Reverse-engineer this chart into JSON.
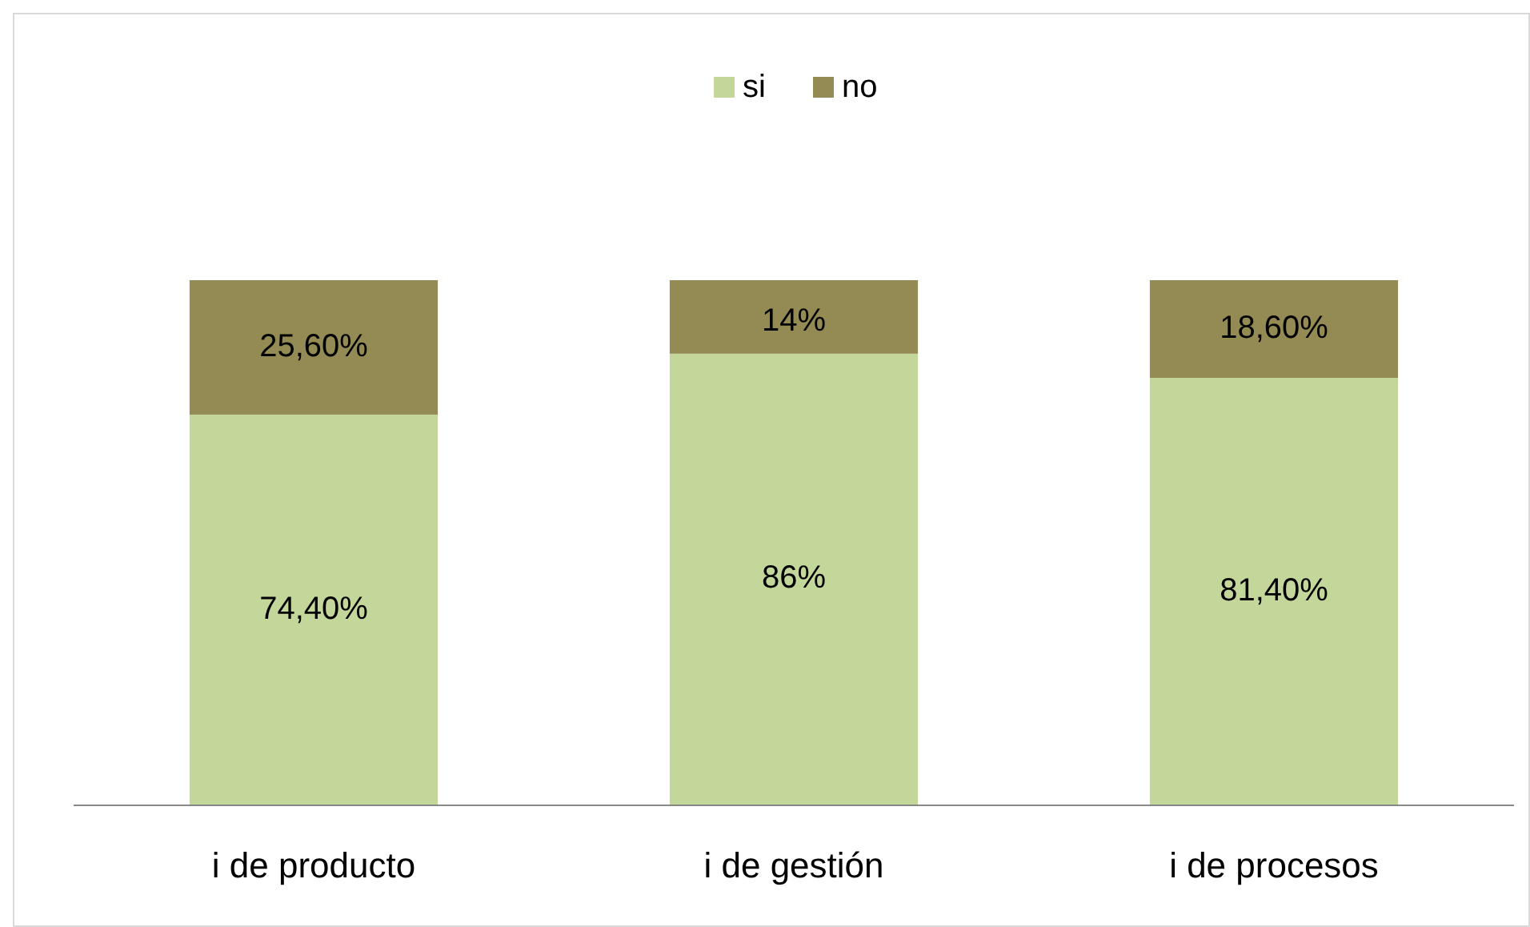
{
  "chart_data": {
    "type": "bar",
    "stacked": true,
    "legend": "top",
    "categories": [
      "i de producto",
      "i de gestión",
      "i de procesos"
    ],
    "series": [
      {
        "name": "si",
        "color": "#c4d79b",
        "values": [
          74.4,
          86,
          81.4
        ],
        "value_labels": [
          "74,40%",
          "86%",
          "81,40%"
        ]
      },
      {
        "name": "no",
        "color": "#948a54",
        "values": [
          25.6,
          14,
          18.6
        ],
        "value_labels": [
          "25,60%",
          "14%",
          "18,60%"
        ]
      }
    ]
  }
}
